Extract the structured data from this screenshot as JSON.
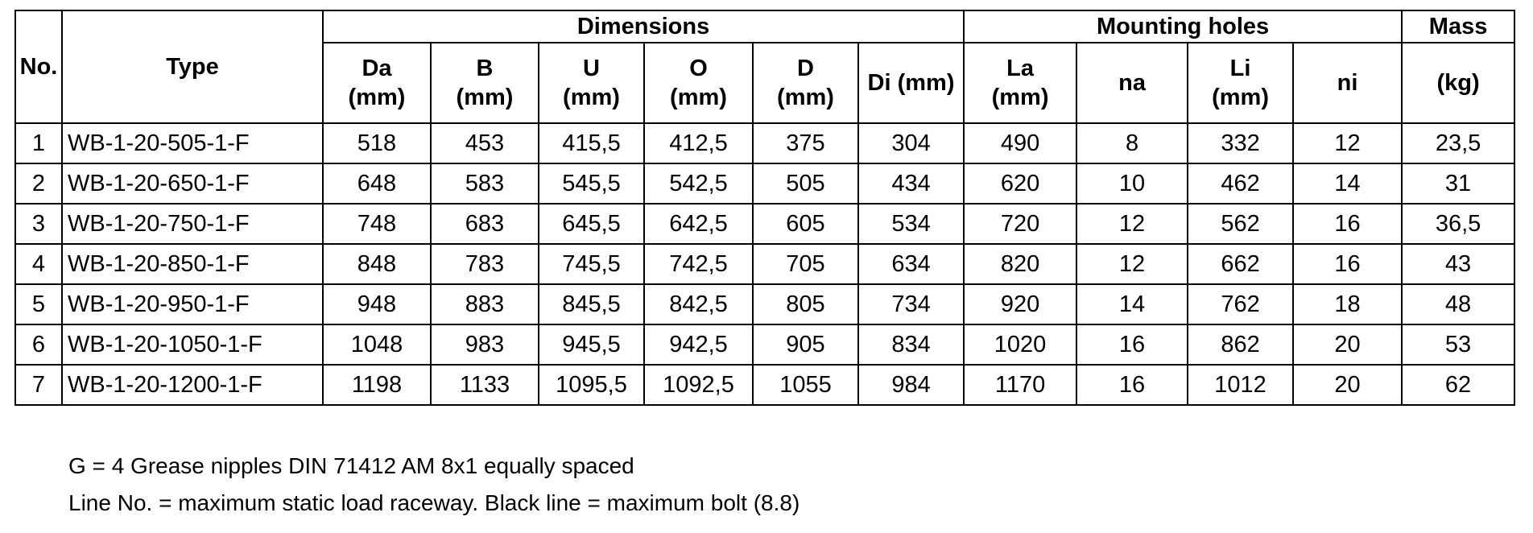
{
  "table": {
    "group_headers": {
      "dimensions": "Dimensions",
      "mounting_holes": "Mounting holes",
      "mass": "Mass"
    },
    "columns": [
      {
        "key": "no",
        "label": "No."
      },
      {
        "key": "type",
        "label": "Type"
      },
      {
        "key": "da",
        "label": "Da\n(mm)"
      },
      {
        "key": "b",
        "label": "B\n(mm)"
      },
      {
        "key": "u",
        "label": "U\n(mm)"
      },
      {
        "key": "o",
        "label": "O\n(mm)"
      },
      {
        "key": "d",
        "label": "D\n(mm)"
      },
      {
        "key": "di",
        "label": "Di (mm)"
      },
      {
        "key": "la",
        "label": "La\n(mm)"
      },
      {
        "key": "na",
        "label": "na"
      },
      {
        "key": "li",
        "label": "Li\n(mm)"
      },
      {
        "key": "ni",
        "label": "ni"
      },
      {
        "key": "kg",
        "label": "(kg)"
      }
    ],
    "rows": [
      [
        "1",
        "WB-1-20-505-1-F",
        "518",
        "453",
        "415,5",
        "412,5",
        "375",
        "304",
        "490",
        "8",
        "332",
        "12",
        "23,5"
      ],
      [
        "2",
        "WB-1-20-650-1-F",
        "648",
        "583",
        "545,5",
        "542,5",
        "505",
        "434",
        "620",
        "10",
        "462",
        "14",
        "31"
      ],
      [
        "3",
        "WB-1-20-750-1-F",
        "748",
        "683",
        "645,5",
        "642,5",
        "605",
        "534",
        "720",
        "12",
        "562",
        "16",
        "36,5"
      ],
      [
        "4",
        "WB-1-20-850-1-F",
        "848",
        "783",
        "745,5",
        "742,5",
        "705",
        "634",
        "820",
        "12",
        "662",
        "16",
        "43"
      ],
      [
        "5",
        "WB-1-20-950-1-F",
        "948",
        "883",
        "845,5",
        "842,5",
        "805",
        "734",
        "920",
        "14",
        "762",
        "18",
        "48"
      ],
      [
        "6",
        "WB-1-20-1050-1-F",
        "1048",
        "983",
        "945,5",
        "942,5",
        "905",
        "834",
        "1020",
        "16",
        "862",
        "20",
        "53"
      ],
      [
        "7",
        "WB-1-20-1200-1-F",
        "1198",
        "1133",
        "1095,5",
        "1092,5",
        "1055",
        "984",
        "1170",
        "16",
        "1012",
        "20",
        "62"
      ]
    ]
  },
  "notes": {
    "line1": "G = 4 Grease nipples DIN 71412 AM 8x1 equally spaced",
    "line2": "Line No. = maximum static load raceway. Black line = maximum bolt (8.8)"
  }
}
